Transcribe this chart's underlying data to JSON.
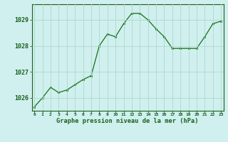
{
  "x": [
    0,
    1,
    2,
    3,
    4,
    5,
    6,
    7,
    8,
    9,
    10,
    11,
    12,
    13,
    14,
    15,
    16,
    17,
    18,
    19,
    20,
    21,
    22,
    23
  ],
  "y": [
    1025.65,
    1026.0,
    1026.4,
    1026.2,
    1026.3,
    1026.5,
    1026.7,
    1026.85,
    1028.0,
    1028.45,
    1028.35,
    1028.85,
    1029.25,
    1029.25,
    1029.0,
    1028.65,
    1028.35,
    1027.9,
    1027.9,
    1027.9,
    1027.9,
    1028.35,
    1028.85,
    1028.95
  ],
  "line_color": "#1a6e1a",
  "marker": "s",
  "marker_size": 2.0,
  "bg_color": "#cff0ee",
  "grid_color": "#b0d8cc",
  "xlabel": "Graphe pression niveau de la mer (hPa)",
  "xlabel_color": "#1a5e1a",
  "tick_label_color": "#1a5e1a",
  "ylim": [
    1025.5,
    1029.6
  ],
  "yticks": [
    1026,
    1027,
    1028,
    1029
  ],
  "xticks": [
    0,
    1,
    2,
    3,
    4,
    5,
    6,
    7,
    8,
    9,
    10,
    11,
    12,
    13,
    14,
    15,
    16,
    17,
    18,
    19,
    20,
    21,
    22,
    23
  ],
  "xtick_labels": [
    "0",
    "1",
    "2",
    "3",
    "4",
    "5",
    "6",
    "7",
    "8",
    "9",
    "10",
    "11",
    "12",
    "13",
    "14",
    "15",
    "16",
    "17",
    "18",
    "19",
    "20",
    "21",
    "22",
    "23"
  ],
  "border_color": "#1a5e1a",
  "xlim": [
    -0.3,
    23.3
  ]
}
